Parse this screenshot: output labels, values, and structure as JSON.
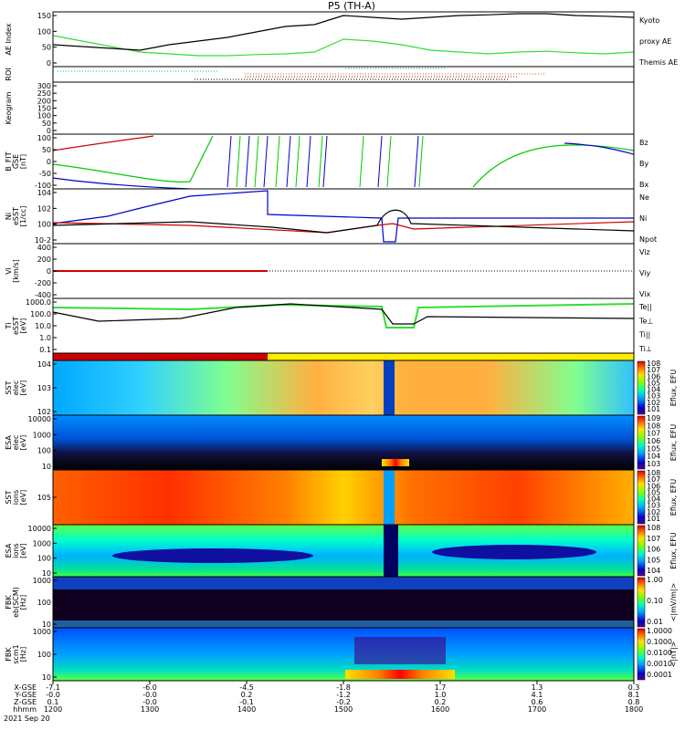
{
  "chart_data": {
    "type": "stacked-panel-plot",
    "title": "P5 (TH-A)",
    "date_label": "2021 Sep 20",
    "x_axis": {
      "time_ticks": [
        "1200",
        "1300",
        "1400",
        "1500",
        "1600",
        "1700",
        "1800"
      ],
      "row_labels": [
        "X-GSE",
        "Y-GSE",
        "Z-GSE",
        "hhmm"
      ],
      "ephemeris": {
        "X-GSE": [
          "-7.1",
          "-6.0",
          "-4.5",
          "-1.8",
          "1.7",
          "1.3",
          "0.3"
        ],
        "Y-GSE": [
          "-0.0",
          "-0.0",
          "0.2",
          "-1.2",
          "1.0",
          "4.1",
          "8.1"
        ],
        "Z-GSE": [
          "0.1",
          "-0.0",
          "-0.1",
          "-0.2",
          "0.2",
          "0.6",
          "0.8"
        ]
      }
    },
    "panels": [
      {
        "id": "ae",
        "ylabel": "AE Index",
        "yticks": [
          "150",
          "100",
          "50",
          "0"
        ],
        "legend": [
          {
            "text": "Kyoto",
            "color": "#00cc00"
          },
          {
            "text": "proxy AE",
            "color": "#00cc00"
          },
          {
            "text": "Themis AE",
            "color": "#000000"
          }
        ],
        "series": [
          {
            "name": "Kyoto proxy AE",
            "color": "#33dd33",
            "x": [
              0,
              0.05,
              0.1,
              0.15,
              0.2,
              0.25,
              0.3,
              0.35,
              0.4,
              0.45,
              0.5,
              0.55,
              0.6,
              0.65,
              0.7,
              0.75,
              0.8,
              0.85,
              0.9,
              0.95,
              1.0
            ],
            "y": [
              85,
              70,
              55,
              40,
              35,
              30,
              30,
              33,
              35,
              40,
              75,
              70,
              60,
              45,
              40,
              35,
              40,
              42,
              38,
              35,
              40
            ]
          },
          {
            "name": "Themis AE",
            "color": "#000000",
            "x": [
              0,
              0.05,
              0.1,
              0.15,
              0.2,
              0.25,
              0.3,
              0.35,
              0.4,
              0.45,
              0.5,
              0.55,
              0.6,
              0.65,
              0.7,
              0.75,
              0.8,
              0.85,
              0.9,
              0.95,
              1.0
            ],
            "y": [
              60,
              55,
              50,
              45,
              60,
              70,
              80,
              95,
              110,
              115,
              140,
              135,
              130,
              135,
              140,
              142,
              145,
              145,
              140,
              138,
              135
            ]
          }
        ]
      },
      {
        "id": "roi",
        "ylabel": "ROI",
        "yticks": []
      },
      {
        "id": "keogram",
        "ylabel": "Keogram",
        "yticks": [
          "300",
          "250",
          "200",
          "150",
          "100",
          "50",
          "0"
        ]
      },
      {
        "id": "bfit",
        "ylabel": "B_FIT",
        "ylabel2": "GSE",
        "ylabel3": "[nT]",
        "yticks": [
          "100",
          "50",
          "0",
          "-50",
          "-100"
        ],
        "legend": [
          {
            "text": "Bz",
            "color": "#cc0000"
          },
          {
            "text": "By",
            "color": "#00cc00"
          },
          {
            "text": "Bx",
            "color": "#0000cc"
          }
        ]
      },
      {
        "id": "ni",
        "ylabel": "Ni",
        "ylabel2": "eSST",
        "ylabel3": "[1/cc]",
        "yticks": [
          "10^4",
          "10^2",
          "10^0",
          "10^-2"
        ],
        "legend": [
          {
            "text": "Ne",
            "color": "#cc0000"
          },
          {
            "text": "Ni",
            "color": "#000000"
          },
          {
            "text": "Npot",
            "color": "#0000cc"
          }
        ]
      },
      {
        "id": "vi",
        "ylabel": "Vi",
        "ylabel2": "[km/s]",
        "yticks": [
          "400",
          "200",
          "0",
          "-200",
          "-400"
        ],
        "legend": [
          {
            "text": "Viz",
            "color": "#cc0000"
          },
          {
            "text": "Viy",
            "color": "#00cc00"
          },
          {
            "text": "Vix",
            "color": "#0000cc"
          }
        ]
      },
      {
        "id": "ti",
        "ylabel": "Ti",
        "ylabel2": "eSST",
        "ylabel3": "[eV]",
        "yticks": [
          "1000.0",
          "100.0",
          "10.0",
          "1.0",
          "0.1"
        ],
        "legend": [
          {
            "text": "Te||",
            "color": "#000000"
          },
          {
            "text": "Te⊥",
            "color": "#cc0000"
          },
          {
            "text": "Ti||",
            "color": "#00cc00"
          },
          {
            "text": "Ti⊥",
            "color": "#0000cc"
          }
        ]
      },
      {
        "id": "mode",
        "ylabel": "",
        "yticks": []
      },
      {
        "id": "sst_e",
        "ylabel": "SST",
        "ylabel2": "elec",
        "ylabel3": "[eV]",
        "yticks": [
          "10^4",
          "10^3",
          "10^2"
        ],
        "colorbar": {
          "label": "Eflux, EFU",
          "ticks": [
            "10^8",
            "10^7",
            "10^6",
            "10^5",
            "10^4",
            "10^3",
            "10^2",
            "10^1"
          ]
        }
      },
      {
        "id": "esa_e",
        "ylabel": "ESA",
        "ylabel2": "elec",
        "ylabel3": "[eV]",
        "yticks": [
          "10000",
          "1000",
          "100",
          "10"
        ],
        "colorbar": {
          "label": "Eflux, EFU",
          "ticks": [
            "10^9",
            "10^8",
            "10^7",
            "10^6",
            "10^5",
            "10^4",
            "10^3"
          ]
        }
      },
      {
        "id": "sst_i",
        "ylabel": "SST",
        "ylabel2": "ions",
        "ylabel3": "[eV]",
        "yticks": [
          "10^5"
        ],
        "colorbar": {
          "label": "Eflux, EFU",
          "ticks": [
            "10^8",
            "10^7",
            "10^6",
            "10^5",
            "10^4",
            "10^3",
            "10^2",
            "10^1"
          ]
        }
      },
      {
        "id": "esa_i",
        "ylabel": "ESA",
        "ylabel2": "ions",
        "ylabel3": "[eV]",
        "yticks": [
          "10000",
          "1000",
          "100",
          "10"
        ],
        "colorbar": {
          "label": "Eflux, EFU",
          "ticks": [
            "10^8",
            "10^7",
            "10^6",
            "10^5",
            "10^4"
          ]
        }
      },
      {
        "id": "fbk_e",
        "ylabel": "FBK",
        "ylabel2": "eb(SCM)",
        "ylabel3": "[Hz]",
        "yticks": [
          "1000",
          "100",
          "10"
        ],
        "colorbar": {
          "label": "<|mV/m|>",
          "ticks": [
            "1.00",
            "0.10",
            "0.01"
          ]
        }
      },
      {
        "id": "fbk_b",
        "ylabel": "FBK",
        "ylabel2": "scm1",
        "ylabel3": "[Hz]",
        "yticks": [
          "1000",
          "100",
          "10"
        ],
        "colorbar": {
          "label": "<|nT|>",
          "ticks": [
            "1.0000",
            "0.1000",
            "0.0100",
            "0.0010",
            "0.0001"
          ]
        }
      }
    ]
  },
  "colors": {
    "jet_low": "#000090",
    "jet_mid": "#00ff80",
    "jet_high": "#ff2000",
    "mode_bar_red": "#cc0000",
    "mode_bar_yellow": "#ffee00"
  }
}
